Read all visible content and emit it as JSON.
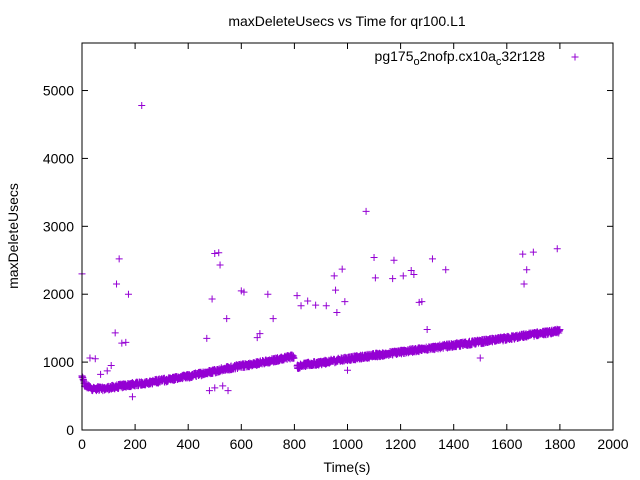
{
  "chart_data": {
    "type": "scatter",
    "title": "maxDeleteUsecs vs Time for qr100.L1",
    "xlabel": "Time(s)",
    "ylabel": "maxDeleteUsecs",
    "xlim": [
      0,
      2000
    ],
    "ylim": [
      0,
      5700
    ],
    "xticks": [
      "0",
      "200",
      "400",
      "600",
      "800",
      "1000",
      "1200",
      "1400",
      "1600",
      "1800",
      "2000"
    ],
    "yticks": [
      "0",
      "1000",
      "2000",
      "3000",
      "4000",
      "5000"
    ],
    "grid": false,
    "legend_position": "top-right",
    "marker": "+",
    "series": [
      {
        "name": "pg175_o2nofp.cx10a_c32r128",
        "color": "#9400d3",
        "trend": {
          "segments": [
            {
              "x": [
                0,
                10,
                40,
                80,
                150,
                250,
                400,
                550,
                700,
                800
              ],
              "y": [
                780,
                650,
                600,
                600,
                640,
                690,
                780,
                900,
                1000,
                1080
              ]
            },
            {
              "x": [
                810,
                830,
                900,
                1000,
                1100,
                1200,
                1300,
                1400,
                1500,
                1600,
                1700,
                1800
              ],
              "y": [
                920,
                950,
                980,
                1040,
                1090,
                1140,
                1190,
                1240,
                1290,
                1340,
                1400,
                1450
              ]
            }
          ],
          "spread": 60
        },
        "outliers": [
          {
            "x": 0,
            "y": 2300
          },
          {
            "x": 30,
            "y": 1060
          },
          {
            "x": 50,
            "y": 1050
          },
          {
            "x": 70,
            "y": 820
          },
          {
            "x": 95,
            "y": 870
          },
          {
            "x": 110,
            "y": 950
          },
          {
            "x": 130,
            "y": 2150
          },
          {
            "x": 140,
            "y": 2520
          },
          {
            "x": 125,
            "y": 1430
          },
          {
            "x": 150,
            "y": 1280
          },
          {
            "x": 165,
            "y": 1290
          },
          {
            "x": 175,
            "y": 2000
          },
          {
            "x": 190,
            "y": 490
          },
          {
            "x": 225,
            "y": 4780
          },
          {
            "x": 470,
            "y": 1350
          },
          {
            "x": 480,
            "y": 580
          },
          {
            "x": 490,
            "y": 1930
          },
          {
            "x": 500,
            "y": 2600
          },
          {
            "x": 515,
            "y": 2610
          },
          {
            "x": 520,
            "y": 2430
          },
          {
            "x": 500,
            "y": 620
          },
          {
            "x": 530,
            "y": 650
          },
          {
            "x": 545,
            "y": 1640
          },
          {
            "x": 550,
            "y": 580
          },
          {
            "x": 600,
            "y": 2050
          },
          {
            "x": 610,
            "y": 2030
          },
          {
            "x": 660,
            "y": 1360
          },
          {
            "x": 670,
            "y": 1420
          },
          {
            "x": 700,
            "y": 2000
          },
          {
            "x": 720,
            "y": 1640
          },
          {
            "x": 810,
            "y": 1980
          },
          {
            "x": 825,
            "y": 1830
          },
          {
            "x": 850,
            "y": 1900
          },
          {
            "x": 880,
            "y": 1840
          },
          {
            "x": 920,
            "y": 1830
          },
          {
            "x": 950,
            "y": 2270
          },
          {
            "x": 955,
            "y": 2060
          },
          {
            "x": 960,
            "y": 1730
          },
          {
            "x": 980,
            "y": 2370
          },
          {
            "x": 990,
            "y": 1890
          },
          {
            "x": 1000,
            "y": 880
          },
          {
            "x": 1070,
            "y": 3220
          },
          {
            "x": 1100,
            "y": 2540
          },
          {
            "x": 1105,
            "y": 2240
          },
          {
            "x": 1170,
            "y": 2230
          },
          {
            "x": 1175,
            "y": 2500
          },
          {
            "x": 1210,
            "y": 2270
          },
          {
            "x": 1240,
            "y": 2350
          },
          {
            "x": 1250,
            "y": 2290
          },
          {
            "x": 1270,
            "y": 1880
          },
          {
            "x": 1280,
            "y": 1890
          },
          {
            "x": 1300,
            "y": 1480
          },
          {
            "x": 1320,
            "y": 2520
          },
          {
            "x": 1370,
            "y": 2360
          },
          {
            "x": 1500,
            "y": 1060
          },
          {
            "x": 1660,
            "y": 2590
          },
          {
            "x": 1665,
            "y": 2150
          },
          {
            "x": 1675,
            "y": 2360
          },
          {
            "x": 1700,
            "y": 2620
          },
          {
            "x": 1790,
            "y": 2670
          },
          {
            "x": 1800,
            "y": 1480
          }
        ]
      }
    ]
  }
}
